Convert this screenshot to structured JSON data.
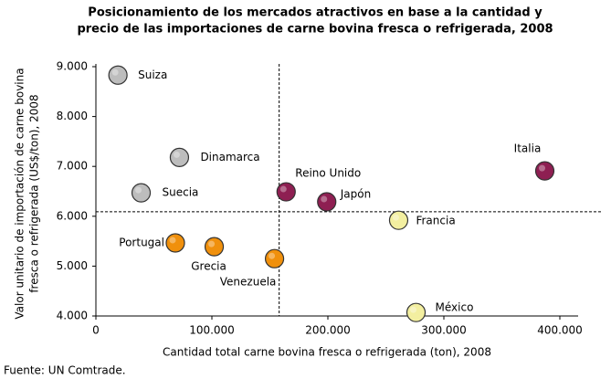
{
  "chart_data": {
    "type": "scatter",
    "title": [
      "Posicionamiento de los mercados atractivos en base a la cantidad y",
      "precio de las importaciones de carne bovina fresca o refrigerada, 2008"
    ],
    "x_label": "Cantidad total carne bovina fresca o refrigerada (ton), 2008",
    "y_label": [
      "Valor unitario de importación de carne bovina",
      "fresca o refrigerada (US$/ton), 2008"
    ],
    "source": "Fuente: UN Comtrade.",
    "xlim": [
      0,
      400000
    ],
    "xticks": [
      0,
      {
        "value": 100000,
        "label": "100.000"
      },
      {
        "value": 200000,
        "label": "200.000"
      },
      {
        "value": 300000,
        "label": "300.000"
      },
      {
        "value": 400000,
        "label": "400.000"
      }
    ],
    "ylim": [
      4000,
      9000
    ],
    "yticks": [
      {
        "value": 4000,
        "label": "4.000"
      },
      {
        "value": 5000,
        "label": "5.000"
      },
      {
        "value": 6000,
        "label": "6.000"
      },
      {
        "value": 7000,
        "label": "7.000"
      },
      {
        "value": 8000,
        "label": "8.000"
      },
      {
        "value": 9000,
        "label": "9.000"
      }
    ],
    "reference_lines": {
      "x": 158000,
      "y": 6090
    },
    "points": [
      {
        "label": "Suiza",
        "x": 19000,
        "y": 8830,
        "color": "#bdbdbd"
      },
      {
        "label": "Dinamarca",
        "x": 72000,
        "y": 7180,
        "color": "#bdbdbd"
      },
      {
        "label": "Suecia",
        "x": 39000,
        "y": 6470,
        "color": "#bdbdbd"
      },
      {
        "label": "Reino Unido",
        "x": 164000,
        "y": 6490,
        "color": "#8e1f52"
      },
      {
        "label": "Japón",
        "x": 199000,
        "y": 6290,
        "color": "#8e1f52"
      },
      {
        "label": "Italia",
        "x": 387000,
        "y": 6910,
        "color": "#8e1f52"
      },
      {
        "label": "Francia",
        "x": 261000,
        "y": 5920,
        "color": "#f3efa0"
      },
      {
        "label": "Portugal",
        "x": 68500,
        "y": 5465,
        "color": "#f0900c"
      },
      {
        "label": "Grecia",
        "x": 102000,
        "y": 5390,
        "color": "#f0900c"
      },
      {
        "label": "Venezuela",
        "x": 154000,
        "y": 5150,
        "color": "#f0900c"
      },
      {
        "label": "México",
        "x": 276000,
        "y": 4070,
        "color": "#f3efa0"
      }
    ]
  }
}
